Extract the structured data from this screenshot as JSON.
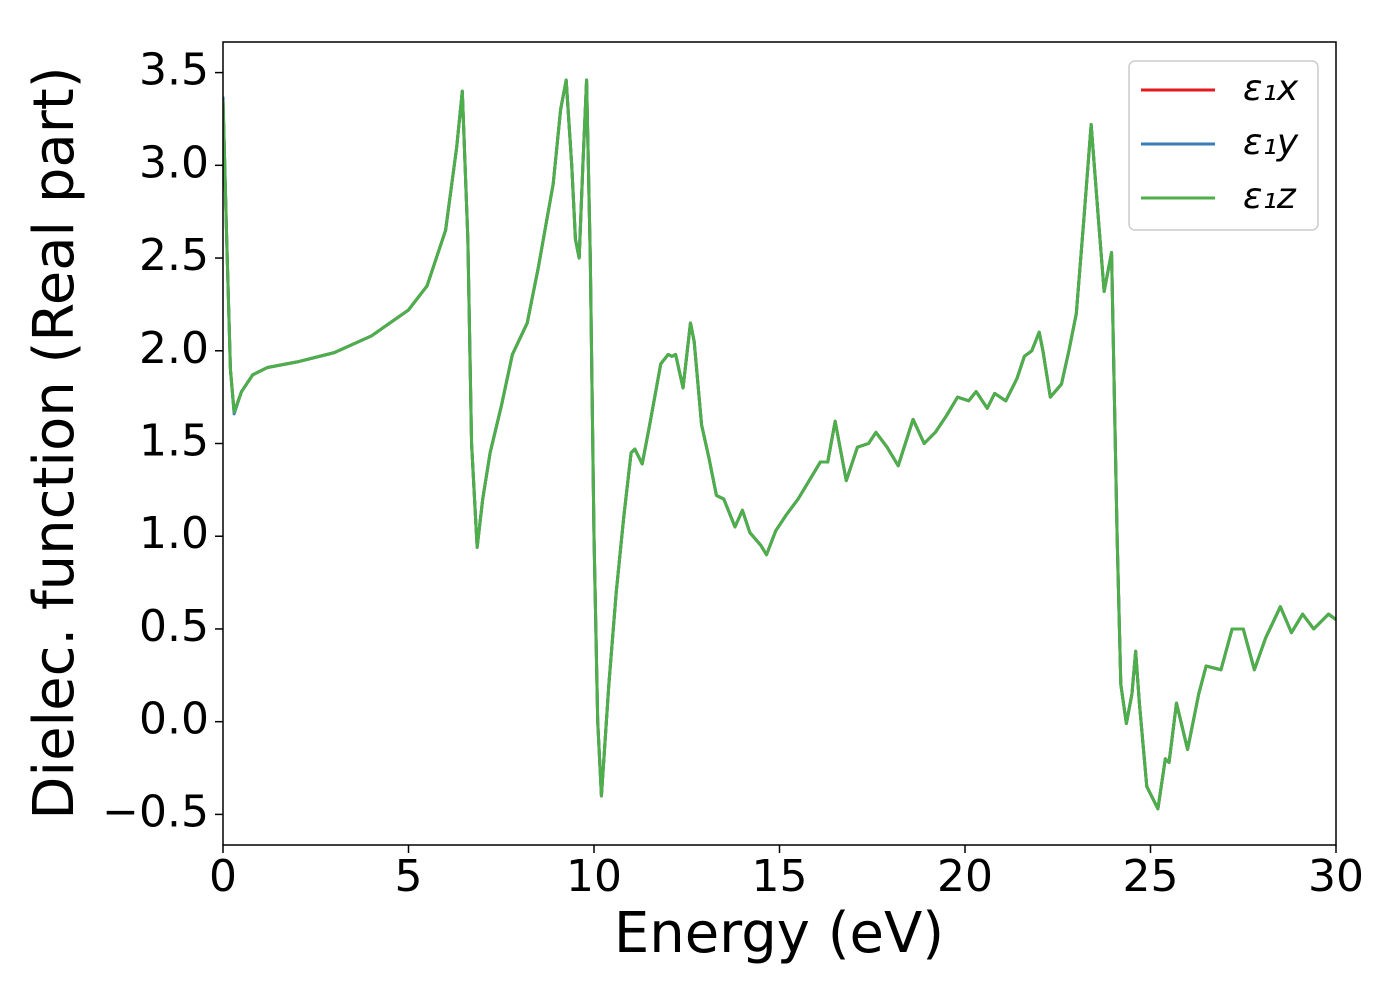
{
  "chart_data": {
    "type": "line",
    "xlabel": "Energy (eV)",
    "ylabel": "Dielec. function (Real part)",
    "x": [
      0,
      0.1,
      0.2,
      0.3,
      0.5,
      0.8,
      1.2,
      2,
      3,
      4,
      5,
      5.5,
      6.0,
      6.3,
      6.45,
      6.6,
      6.7,
      6.85,
      7.0,
      7.2,
      7.5,
      7.8,
      8.2,
      8.5,
      8.9,
      9.1,
      9.25,
      9.4,
      9.5,
      9.6,
      9.7,
      9.8,
      9.9,
      10.0,
      10.1,
      10.2,
      10.4,
      10.6,
      10.8,
      11.0,
      11.1,
      11.3,
      11.5,
      11.8,
      12.0,
      12.1,
      12.2,
      12.4,
      12.6,
      12.7,
      12.9,
      13.1,
      13.3,
      13.5,
      13.8,
      14.0,
      14.2,
      14.5,
      14.65,
      14.9,
      15.2,
      15.5,
      15.8,
      16.1,
      16.3,
      16.5,
      16.8,
      17.1,
      17.4,
      17.6,
      17.9,
      18.2,
      18.6,
      18.9,
      19.2,
      19.5,
      19.8,
      20.1,
      20.3,
      20.6,
      20.8,
      21.1,
      21.4,
      21.6,
      21.8,
      22.0,
      22.1,
      22.3,
      22.6,
      22.8,
      23.0,
      23.2,
      23.4,
      23.6,
      23.75,
      23.95,
      24.1,
      24.2,
      24.35,
      24.5,
      24.6,
      24.7,
      24.9,
      25.2,
      25.4,
      25.5,
      25.7,
      26.0,
      26.3,
      26.5,
      26.9,
      27.2,
      27.5,
      27.8,
      28.1,
      28.5,
      28.8,
      29.1,
      29.4,
      29.8,
      30
    ],
    "series": [
      {
        "name": "ε₁x",
        "color": "#e41a1c",
        "values": [
          3.35,
          2.6,
          1.9,
          1.67,
          1.78,
          1.87,
          1.91,
          1.94,
          1.99,
          2.08,
          2.22,
          2.35,
          2.65,
          3.1,
          3.4,
          2.6,
          1.5,
          0.94,
          1.2,
          1.45,
          1.7,
          1.98,
          2.15,
          2.45,
          2.9,
          3.3,
          3.46,
          3.0,
          2.6,
          2.5,
          3.0,
          3.46,
          2.5,
          1.0,
          0.0,
          -0.4,
          0.2,
          0.7,
          1.1,
          1.45,
          1.47,
          1.39,
          1.6,
          1.93,
          1.98,
          1.97,
          1.98,
          1.8,
          2.15,
          2.05,
          1.6,
          1.42,
          1.22,
          1.2,
          1.05,
          1.14,
          1.02,
          0.95,
          0.9,
          1.03,
          1.12,
          1.2,
          1.3,
          1.4,
          1.4,
          1.62,
          1.3,
          1.48,
          1.5,
          1.56,
          1.48,
          1.38,
          1.63,
          1.5,
          1.56,
          1.65,
          1.75,
          1.73,
          1.78,
          1.69,
          1.77,
          1.73,
          1.85,
          1.97,
          2.0,
          2.1,
          2.0,
          1.75,
          1.82,
          2.0,
          2.2,
          2.7,
          3.22,
          2.7,
          2.32,
          2.53,
          1.0,
          0.2,
          -0.01,
          0.15,
          0.38,
          0.1,
          -0.35,
          -0.47,
          -0.2,
          -0.22,
          0.1,
          -0.15,
          0.15,
          0.3,
          0.28,
          0.5,
          0.5,
          0.28,
          0.45,
          0.62,
          0.48,
          0.58,
          0.5,
          0.58,
          0.55
        ]
      },
      {
        "name": "ε₁y",
        "color": "#377eb8",
        "values": [
          3.37,
          2.6,
          1.9,
          1.66,
          1.78,
          1.87,
          1.91,
          1.94,
          1.99,
          2.08,
          2.22,
          2.35,
          2.65,
          3.1,
          3.4,
          2.6,
          1.5,
          0.94,
          1.2,
          1.45,
          1.7,
          1.98,
          2.15,
          2.45,
          2.9,
          3.3,
          3.46,
          3.0,
          2.6,
          2.5,
          3.0,
          3.46,
          2.5,
          1.0,
          0.0,
          -0.4,
          0.2,
          0.7,
          1.1,
          1.45,
          1.47,
          1.39,
          1.6,
          1.93,
          1.98,
          1.97,
          1.98,
          1.8,
          2.15,
          2.05,
          1.6,
          1.42,
          1.22,
          1.2,
          1.05,
          1.14,
          1.02,
          0.95,
          0.9,
          1.03,
          1.12,
          1.2,
          1.3,
          1.4,
          1.4,
          1.62,
          1.3,
          1.48,
          1.5,
          1.56,
          1.48,
          1.38,
          1.63,
          1.5,
          1.56,
          1.65,
          1.75,
          1.73,
          1.78,
          1.69,
          1.77,
          1.73,
          1.85,
          1.97,
          2.0,
          2.1,
          2.0,
          1.75,
          1.82,
          2.0,
          2.2,
          2.7,
          3.22,
          2.7,
          2.32,
          2.53,
          1.0,
          0.2,
          -0.01,
          0.15,
          0.38,
          0.1,
          -0.35,
          -0.47,
          -0.2,
          -0.22,
          0.1,
          -0.15,
          0.15,
          0.3,
          0.28,
          0.5,
          0.5,
          0.28,
          0.45,
          0.62,
          0.48,
          0.58,
          0.5,
          0.58,
          0.55
        ]
      },
      {
        "name": "ε₁z",
        "color": "#4daf4a",
        "values": [
          3.35,
          2.6,
          1.9,
          1.67,
          1.78,
          1.87,
          1.91,
          1.94,
          1.99,
          2.08,
          2.22,
          2.35,
          2.65,
          3.1,
          3.4,
          2.6,
          1.5,
          0.94,
          1.2,
          1.45,
          1.7,
          1.98,
          2.15,
          2.45,
          2.9,
          3.3,
          3.46,
          3.0,
          2.6,
          2.5,
          3.0,
          3.46,
          2.5,
          1.0,
          0.0,
          -0.4,
          0.2,
          0.7,
          1.1,
          1.45,
          1.47,
          1.39,
          1.6,
          1.93,
          1.98,
          1.97,
          1.98,
          1.8,
          2.15,
          2.05,
          1.6,
          1.42,
          1.22,
          1.2,
          1.05,
          1.14,
          1.02,
          0.95,
          0.9,
          1.03,
          1.12,
          1.2,
          1.3,
          1.4,
          1.4,
          1.62,
          1.3,
          1.48,
          1.5,
          1.56,
          1.48,
          1.38,
          1.63,
          1.5,
          1.56,
          1.65,
          1.75,
          1.73,
          1.78,
          1.69,
          1.77,
          1.73,
          1.85,
          1.97,
          2.0,
          2.1,
          2.0,
          1.75,
          1.82,
          2.0,
          2.2,
          2.7,
          3.22,
          2.7,
          2.32,
          2.53,
          1.0,
          0.2,
          -0.01,
          0.15,
          0.38,
          0.1,
          -0.35,
          -0.47,
          -0.2,
          -0.22,
          0.1,
          -0.15,
          0.15,
          0.3,
          0.28,
          0.5,
          0.5,
          0.28,
          0.45,
          0.62,
          0.48,
          0.58,
          0.5,
          0.58,
          0.55
        ]
      }
    ],
    "xlim": [
      0,
      30
    ],
    "xticks": [
      0,
      5,
      10,
      15,
      20,
      25,
      30
    ],
    "ylim": [
      -0.665,
      3.665
    ],
    "yticks": [
      {
        "value": -0.5,
        "label": "−0.5"
      },
      {
        "value": 0,
        "label": "0.0"
      },
      0.5,
      {
        "value": 1,
        "label": "1.0"
      },
      1.5,
      {
        "value": 2,
        "label": "2.0"
      },
      2.5,
      {
        "value": 3,
        "label": "3.0"
      },
      3.5
    ],
    "legend": "upper right",
    "grid": false
  }
}
